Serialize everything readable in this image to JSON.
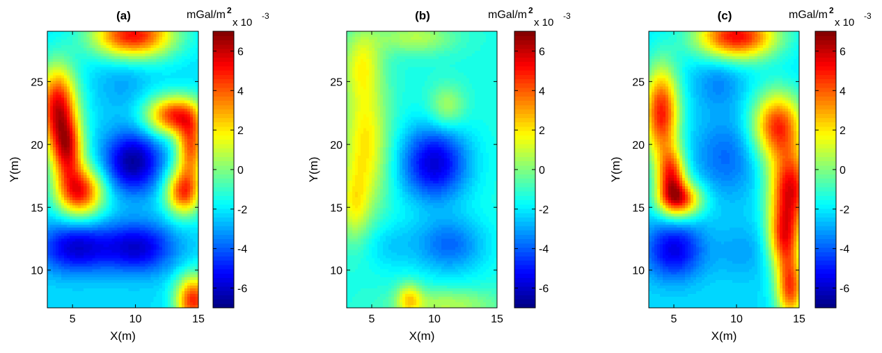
{
  "figure": {
    "colormap": "jet",
    "panels": [
      {
        "title": "(a)",
        "xlabel": "X(m)",
        "ylabel": "Y(m)",
        "xlim": [
          3,
          15
        ],
        "ylim": [
          7,
          29
        ],
        "xticks": [
          "5",
          "10",
          "15"
        ],
        "yticks": [
          "10",
          "15",
          "20",
          "25"
        ],
        "colorbar": {
          "unit": "mGal/m",
          "unit_sup": "2",
          "multiplier": "x 10",
          "multiplier_sup": "-3",
          "range": [
            -7,
            7
          ],
          "ticks": [
            "6",
            "4",
            "2",
            "0",
            "-2",
            "-4",
            "-6"
          ]
        }
      },
      {
        "title": "(b)",
        "xlabel": "X(m)",
        "ylabel": "Y(m)",
        "xlim": [
          3,
          15
        ],
        "ylim": [
          7,
          29
        ],
        "xticks": [
          "5",
          "10",
          "15"
        ],
        "yticks": [
          "10",
          "15",
          "20",
          "25"
        ],
        "colorbar": {
          "unit": "mGal/m",
          "unit_sup": "2",
          "multiplier": "x 10",
          "multiplier_sup": "-3",
          "range": [
            -7,
            7
          ],
          "ticks": [
            "6",
            "4",
            "2",
            "0",
            "-2",
            "-4",
            "-6"
          ]
        }
      },
      {
        "title": "(c)",
        "xlabel": "X(m)",
        "ylabel": "Y(m)",
        "xlim": [
          3,
          15
        ],
        "ylim": [
          7,
          29
        ],
        "xticks": [
          "5",
          "10",
          "15"
        ],
        "yticks": [
          "10",
          "15",
          "20",
          "25"
        ],
        "colorbar": {
          "unit": "mGal/m",
          "unit_sup": "2",
          "multiplier": "x 10",
          "multiplier_sup": "-3",
          "range": [
            -7,
            7
          ],
          "ticks": [
            "6",
            "4",
            "2",
            "0",
            "-2",
            "-4",
            "-6"
          ]
        }
      }
    ]
  },
  "chart_data": [
    {
      "type": "heatmap",
      "title": "(a)",
      "xlabel": "X(m)",
      "ylabel": "Y(m)",
      "xlim": [
        3,
        15
      ],
      "ylim": [
        7,
        29
      ],
      "zlim": [
        -7,
        7
      ],
      "z_unit": "mGal/m^2 x 10^-3",
      "background": -2.2,
      "features": [
        {
          "x": 9.8,
          "y": 18.6,
          "value": -6.6,
          "sx": 1.6,
          "sy": 1.7
        },
        {
          "x": 5.2,
          "y": 11.8,
          "value": -5.8,
          "sx": 2.0,
          "sy": 1.4
        },
        {
          "x": 10.2,
          "y": 11.8,
          "value": -5.8,
          "sx": 2.0,
          "sy": 1.4
        },
        {
          "x": 9.0,
          "y": 25.0,
          "value": -3.0,
          "sx": 1.5,
          "sy": 1.7
        },
        {
          "x": 3.8,
          "y": 23.0,
          "value": 5.4,
          "sx": 1.1,
          "sy": 2.3
        },
        {
          "x": 4.6,
          "y": 19.5,
          "value": 4.2,
          "sx": 0.9,
          "sy": 1.8
        },
        {
          "x": 5.6,
          "y": 16.2,
          "value": 4.8,
          "sx": 1.3,
          "sy": 1.4
        },
        {
          "x": 9.8,
          "y": 28.7,
          "value": 5.2,
          "sx": 2.3,
          "sy": 1.3
        },
        {
          "x": 13.0,
          "y": 22.3,
          "value": 4.5,
          "sx": 1.5,
          "sy": 1.1
        },
        {
          "x": 14.4,
          "y": 19.8,
          "value": 3.8,
          "sx": 0.8,
          "sy": 1.8
        },
        {
          "x": 13.8,
          "y": 16.2,
          "value": 4.2,
          "sx": 1.0,
          "sy": 1.3
        },
        {
          "x": 14.6,
          "y": 7.6,
          "value": 4.8,
          "sx": 1.0,
          "sy": 1.4
        }
      ]
    },
    {
      "type": "heatmap",
      "title": "(b)",
      "xlabel": "X(m)",
      "ylabel": "Y(m)",
      "xlim": [
        3,
        15
      ],
      "ylim": [
        7,
        29
      ],
      "zlim": [
        -7,
        7
      ],
      "z_unit": "mGal/m^2 x 10^-3",
      "background": -1.4,
      "features": [
        {
          "x": 10.0,
          "y": 18.5,
          "value": -5.8,
          "sx": 1.9,
          "sy": 2.1
        },
        {
          "x": 11.2,
          "y": 12.0,
          "value": -3.8,
          "sx": 2.0,
          "sy": 1.6
        },
        {
          "x": 6.3,
          "y": 12.0,
          "value": -2.4,
          "sx": 1.6,
          "sy": 1.4
        },
        {
          "x": 4.5,
          "y": 20.0,
          "value": 2.1,
          "sx": 1.3,
          "sy": 3.8
        },
        {
          "x": 4.2,
          "y": 26.5,
          "value": 1.0,
          "sx": 1.1,
          "sy": 2.0
        },
        {
          "x": 8.5,
          "y": 28.5,
          "value": 0.7,
          "sx": 2.2,
          "sy": 0.9
        },
        {
          "x": 11.0,
          "y": 23.0,
          "value": 0.7,
          "sx": 1.0,
          "sy": 1.2
        },
        {
          "x": 8.0,
          "y": 7.7,
          "value": 1.5,
          "sx": 0.7,
          "sy": 0.9
        },
        {
          "x": 11.0,
          "y": 7.2,
          "value": 0.7,
          "sx": 3.0,
          "sy": 0.9
        },
        {
          "x": 3.6,
          "y": 15.0,
          "value": 0.8,
          "sx": 0.8,
          "sy": 2.0
        }
      ]
    },
    {
      "type": "heatmap",
      "title": "(c)",
      "xlabel": "X(m)",
      "ylabel": "Y(m)",
      "xlim": [
        3,
        15
      ],
      "ylim": [
        7,
        29
      ],
      "zlim": [
        -7,
        7
      ],
      "z_unit": "mGal/m^2 x 10^-3",
      "background": -2.2,
      "features": [
        {
          "x": 5.0,
          "y": 11.6,
          "value": -5.6,
          "sx": 1.6,
          "sy": 1.6
        },
        {
          "x": 9.2,
          "y": 19.0,
          "value": -3.8,
          "sx": 1.8,
          "sy": 2.2
        },
        {
          "x": 8.6,
          "y": 25.0,
          "value": -3.4,
          "sx": 1.4,
          "sy": 1.6
        },
        {
          "x": 10.5,
          "y": 11.5,
          "value": -3.0,
          "sx": 1.7,
          "sy": 1.5
        },
        {
          "x": 4.0,
          "y": 22.5,
          "value": 5.0,
          "sx": 1.0,
          "sy": 2.6
        },
        {
          "x": 4.8,
          "y": 17.5,
          "value": 4.0,
          "sx": 0.8,
          "sy": 1.5
        },
        {
          "x": 5.5,
          "y": 15.6,
          "value": 4.2,
          "sx": 1.2,
          "sy": 1.0
        },
        {
          "x": 10.0,
          "y": 28.6,
          "value": 5.3,
          "sx": 2.3,
          "sy": 1.3
        },
        {
          "x": 13.3,
          "y": 21.5,
          "value": 4.5,
          "sx": 1.4,
          "sy": 1.9
        },
        {
          "x": 14.3,
          "y": 16.5,
          "value": 5.2,
          "sx": 1.2,
          "sy": 2.2
        },
        {
          "x": 13.8,
          "y": 12.5,
          "value": 3.8,
          "sx": 0.9,
          "sy": 1.8
        },
        {
          "x": 14.3,
          "y": 8.5,
          "value": 4.2,
          "sx": 0.8,
          "sy": 1.8
        }
      ]
    }
  ]
}
